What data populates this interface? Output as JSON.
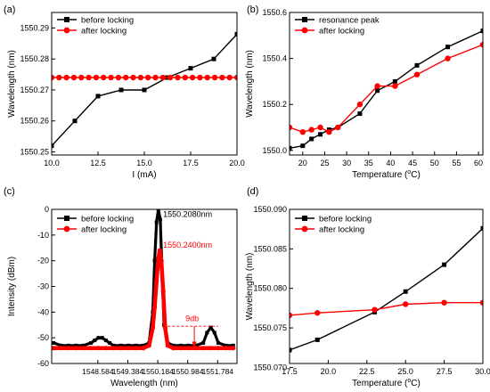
{
  "chart_data": [
    {
      "panel_label": "(a)",
      "type": "line",
      "xlabel": "I (mA)",
      "ylabel": "Wavelength (nm)",
      "xlim": [
        10.0,
        20.0
      ],
      "ylim": [
        1550.249,
        1550.295
      ],
      "xticks": [
        10.0,
        12.5,
        15.0,
        17.5,
        20.0
      ],
      "xtick_labels": [
        "10.0",
        "12.5",
        "15.0",
        "17.5",
        "20.0"
      ],
      "yticks": [
        1550.25,
        1550.26,
        1550.27,
        1550.28,
        1550.29
      ],
      "ytick_labels": [
        "1550.25",
        "1550.26",
        "1550.27",
        "1550.28",
        "1550.29"
      ],
      "legend_position": "top-left",
      "series": [
        {
          "name": "before locking",
          "color": "#000000",
          "marker": "square",
          "x": [
            10.0,
            11.25,
            12.5,
            13.75,
            15.0,
            16.25,
            17.5,
            18.75,
            20.0
          ],
          "y": [
            1550.252,
            1550.26,
            1550.268,
            1550.27,
            1550.27,
            1550.274,
            1550.277,
            1550.28,
            1550.288
          ]
        },
        {
          "name": "after locking",
          "color": "#ff0000",
          "marker": "circle",
          "x": [
            10.0,
            10.4,
            10.8,
            11.2,
            11.6,
            12.0,
            12.4,
            12.8,
            13.2,
            13.6,
            14.0,
            14.4,
            14.8,
            15.2,
            15.6,
            16.0,
            16.4,
            16.8,
            17.2,
            17.6,
            18.0,
            18.4,
            18.8,
            19.2,
            19.6,
            20.0
          ],
          "y": [
            1550.274,
            1550.274,
            1550.274,
            1550.274,
            1550.274,
            1550.274,
            1550.274,
            1550.274,
            1550.274,
            1550.274,
            1550.274,
            1550.274,
            1550.274,
            1550.274,
            1550.274,
            1550.274,
            1550.274,
            1550.274,
            1550.274,
            1550.274,
            1550.274,
            1550.274,
            1550.274,
            1550.274,
            1550.274,
            1550.274
          ]
        }
      ]
    },
    {
      "panel_label": "(b)",
      "type": "line",
      "xlabel": "Temperature (",
      "xlabel_sup": "o",
      "xlabel_tail": "C)",
      "ylabel": "Wavelength (nm)",
      "xlim": [
        17,
        61
      ],
      "ylim": [
        1549.98,
        1550.6
      ],
      "xticks": [
        20,
        25,
        30,
        35,
        40,
        45,
        50,
        55,
        60
      ],
      "xtick_labels": [
        "20",
        "25",
        "30",
        "35",
        "40",
        "45",
        "50",
        "55",
        "60"
      ],
      "yticks": [
        1550.0,
        1550.2,
        1550.4,
        1550.6
      ],
      "ytick_labels": [
        "1550.0",
        "1550.2",
        "1550.4",
        "1550.6"
      ],
      "legend_position": "top-left",
      "series": [
        {
          "name": "resonance peak",
          "color": "#000000",
          "marker": "square",
          "x": [
            17,
            20,
            22,
            24,
            26,
            28,
            33,
            37,
            41,
            46,
            53,
            61
          ],
          "y": [
            1550.01,
            1550.02,
            1550.05,
            1550.07,
            1550.09,
            1550.1,
            1550.16,
            1550.26,
            1550.3,
            1550.37,
            1550.45,
            1550.52
          ]
        },
        {
          "name": "after locking",
          "color": "#ff0000",
          "marker": "circle",
          "x": [
            17,
            20,
            22,
            24,
            26,
            28,
            33,
            37,
            41,
            46,
            53,
            61
          ],
          "y": [
            1550.1,
            1550.08,
            1550.09,
            1550.1,
            1550.08,
            1550.1,
            1550.2,
            1550.28,
            1550.28,
            1550.33,
            1550.4,
            1550.46
          ]
        }
      ]
    },
    {
      "panel_label": "(c)",
      "type": "line",
      "xlabel": "Wavelength (nm)",
      "ylabel": "Intensity (dBm)",
      "xlim": [
        1547.35,
        1552.3
      ],
      "ylim": [
        -60,
        0
      ],
      "xticks": [
        1548.584,
        1549.384,
        1550.184,
        1550.984,
        1551.784
      ],
      "xtick_labels": [
        "1548.584",
        "1549.384",
        "1550.184",
        "1550.984",
        "1551.784"
      ],
      "yticks": [
        0,
        -10,
        -20,
        -30,
        -40,
        -50,
        -60
      ],
      "ytick_labels": [
        "0",
        "-10",
        "-20",
        "-30",
        "-40",
        "-50",
        "-60"
      ],
      "legend_position": "top-left",
      "annotations": {
        "peak_before": "1550.2080nm",
        "peak_after": "1550.2400nm",
        "difference": "9db"
      },
      "series": [
        {
          "name": "before locking",
          "color": "#000000",
          "marker": "square",
          "x": [
            1547.4,
            1547.6,
            1547.8,
            1548.0,
            1548.2,
            1548.4,
            1548.5,
            1548.6,
            1548.7,
            1548.8,
            1548.9,
            1549.0,
            1549.2,
            1549.4,
            1549.6,
            1549.8,
            1549.95,
            1550.05,
            1550.1,
            1550.15,
            1550.2,
            1550.25,
            1550.3,
            1550.35,
            1550.45,
            1550.6,
            1550.8,
            1551.0,
            1551.2,
            1551.4,
            1551.5,
            1551.6,
            1551.7,
            1551.8,
            1552.0,
            1552.2
          ],
          "y": [
            -52,
            -53,
            -53,
            -53,
            -53,
            -52,
            -51,
            -50,
            -50,
            -51,
            -52,
            -53,
            -53,
            -53,
            -53,
            -53,
            -52,
            -40,
            -20,
            -5,
            0,
            -4,
            -25,
            -45,
            -52,
            -53,
            -53,
            -53,
            -53,
            -52,
            -48,
            -46,
            -48,
            -52,
            -53,
            -53
          ]
        },
        {
          "name": "after locking",
          "color": "#ff0000",
          "marker": "circle",
          "x": [
            1547.4,
            1547.6,
            1547.8,
            1548.0,
            1548.2,
            1548.4,
            1548.6,
            1548.8,
            1549.0,
            1549.2,
            1549.4,
            1549.6,
            1549.8,
            1549.95,
            1550.05,
            1550.1,
            1550.15,
            1550.2,
            1550.24,
            1550.28,
            1550.33,
            1550.38,
            1550.45,
            1550.6,
            1550.8,
            1551.0,
            1551.2,
            1551.4,
            1551.6,
            1551.8,
            1552.0,
            1552.2
          ],
          "y": [
            -54,
            -54,
            -54,
            -54,
            -54,
            -54,
            -54,
            -54,
            -54,
            -54,
            -54,
            -54,
            -54,
            -53,
            -46,
            -38,
            -28,
            -19,
            -16,
            -20,
            -32,
            -46,
            -53,
            -54,
            -54,
            -54,
            -54,
            -54,
            -54,
            -54,
            -54,
            -54
          ]
        }
      ]
    },
    {
      "panel_label": "(d)",
      "type": "line",
      "xlabel": "Temperature (",
      "xlabel_sup": "o",
      "xlabel_tail": "C)",
      "ylabel": "Wavelength (nm)",
      "xlim": [
        17.5,
        30.0
      ],
      "ylim": [
        1550.0705,
        1550.09
      ],
      "xticks": [
        17.5,
        20.0,
        22.5,
        25.0,
        27.5,
        30.0
      ],
      "xtick_labels": [
        "17.5",
        "20.0",
        "22.5",
        "25.0",
        "27.5",
        "30.0"
      ],
      "yticks": [
        1550.07,
        1550.075,
        1550.08,
        1550.085,
        1550.09
      ],
      "ytick_labels": [
        "1550.070",
        "1550.075",
        "1550.080",
        "1550.085",
        "1550.090"
      ],
      "legend_position": "top-left",
      "series": [
        {
          "name": "before locking",
          "color": "#000000",
          "marker": "square",
          "x": [
            17.5,
            19.3,
            23.0,
            25.0,
            27.5,
            30.0
          ],
          "y": [
            1550.0722,
            1550.0735,
            1550.077,
            1550.0796,
            1550.083,
            1550.0876
          ]
        },
        {
          "name": "after locking",
          "color": "#ff0000",
          "marker": "circle",
          "x": [
            17.5,
            19.3,
            23.0,
            25.0,
            27.5,
            30.0
          ],
          "y": [
            1550.0766,
            1550.0769,
            1550.0773,
            1550.078,
            1550.0782,
            1550.0782
          ]
        }
      ]
    }
  ]
}
